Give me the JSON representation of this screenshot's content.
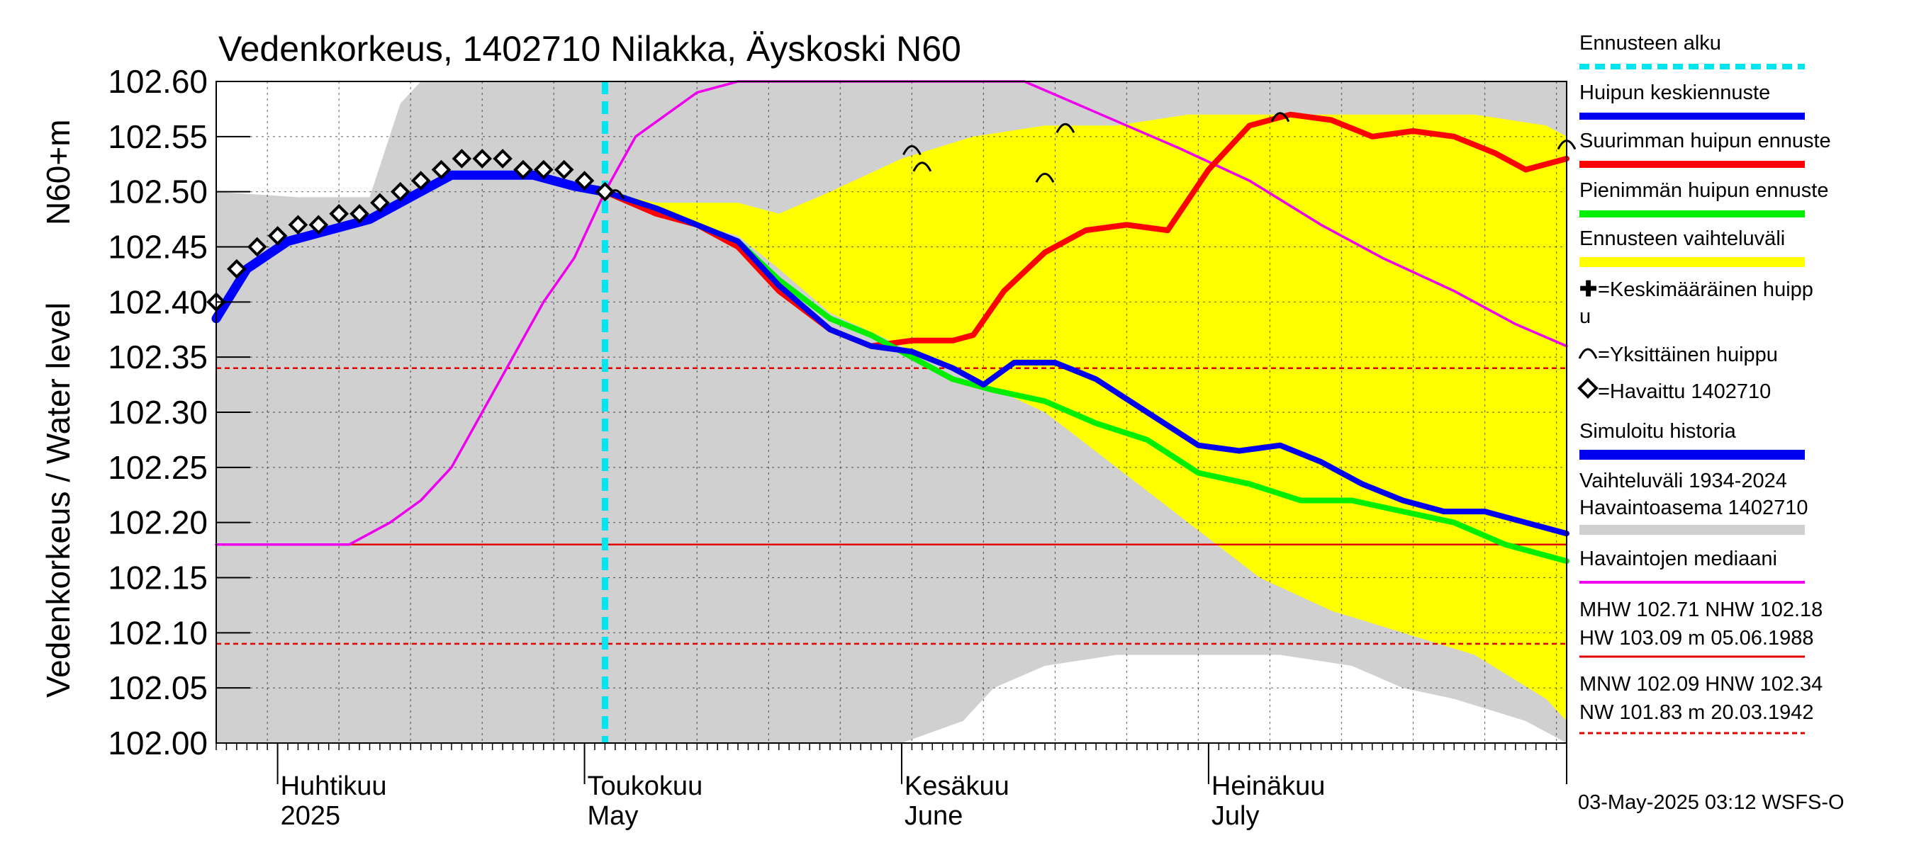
{
  "chart_data": {
    "type": "line",
    "title": "Vedenkorkeus, 1402710 Nilakka, Äyskoski N60",
    "ylabel_primary": "Vedenkorkeus / Water level",
    "ylabel_unit": "N60+m",
    "ylim": [
      102.0,
      102.6
    ],
    "xlim": [
      "2025-03-26",
      "2025-08-05"
    ],
    "y_ticks": [
      "102.00",
      "102.05",
      "102.10",
      "102.15",
      "102.20",
      "102.25",
      "102.30",
      "102.35",
      "102.40",
      "102.45",
      "102.50",
      "102.55",
      "102.60"
    ],
    "months": [
      {
        "fi": "Huhtikuu",
        "en": "2025",
        "date": "2025-04-01"
      },
      {
        "fi": "Toukokuu",
        "en": "May",
        "date": "2025-05-01"
      },
      {
        "fi": "Kesäkuu",
        "en": "June",
        "date": "2025-06-01"
      },
      {
        "fi": "Heinäkuu",
        "en": "July",
        "date": "2025-07-01"
      }
    ],
    "grid": true,
    "forecast_start": "2025-05-03",
    "reference_lines": [
      {
        "label": "NHW",
        "value": 102.18,
        "style": "solid",
        "color": "#e00000"
      },
      {
        "label": "HNW",
        "value": 102.34,
        "style": "dashed",
        "color": "#e00000"
      },
      {
        "label": "MNW",
        "value": 102.09,
        "style": "dashed",
        "color": "#e00000"
      }
    ],
    "series": [
      {
        "name": "Vaihteluväli 1934-2024 Havaintoasema 1402710",
        "kind": "band",
        "color": "#d0d0d0",
        "x": [
          "2025-03-26",
          "2025-04-03",
          "2025-04-10",
          "2025-04-13",
          "2025-04-15",
          "2025-04-20",
          "2025-05-10",
          "2025-05-20",
          "2025-05-28",
          "2025-06-01",
          "2025-06-07",
          "2025-06-10",
          "2025-06-15",
          "2025-06-22",
          "2025-07-01",
          "2025-07-08",
          "2025-07-15",
          "2025-07-20",
          "2025-07-25",
          "2025-08-01",
          "2025-08-05"
        ],
        "upper": [
          102.5,
          102.495,
          102.495,
          102.58,
          102.6,
          102.6,
          102.6,
          102.6,
          102.6,
          102.6,
          102.6,
          102.6,
          102.6,
          102.6,
          102.6,
          102.6,
          102.6,
          102.6,
          102.6,
          102.6,
          102.6
        ],
        "lower": [
          102.0,
          102.0,
          102.0,
          102.0,
          102.0,
          102.0,
          102.0,
          102.0,
          102.0,
          102.0,
          102.02,
          102.05,
          102.07,
          102.08,
          102.08,
          102.08,
          102.07,
          102.05,
          102.04,
          102.02,
          102.0
        ]
      },
      {
        "name": "Ennusteen vaihteluväli",
        "kind": "band",
        "color": "#ffff00",
        "x": [
          "2025-05-03",
          "2025-05-08",
          "2025-05-12",
          "2025-05-16",
          "2025-05-20",
          "2025-05-25",
          "2025-06-01",
          "2025-06-08",
          "2025-06-15",
          "2025-06-22",
          "2025-06-29",
          "2025-07-06",
          "2025-07-13",
          "2025-07-20",
          "2025-07-27",
          "2025-08-03",
          "2025-08-05"
        ],
        "upper": [
          102.5,
          102.49,
          102.49,
          102.49,
          102.48,
          102.5,
          102.53,
          102.55,
          102.56,
          102.56,
          102.57,
          102.57,
          102.57,
          102.57,
          102.57,
          102.56,
          102.55
        ],
        "lower": [
          102.5,
          102.48,
          102.47,
          102.46,
          102.43,
          102.39,
          102.36,
          102.33,
          102.3,
          102.25,
          102.2,
          102.15,
          102.12,
          102.1,
          102.08,
          102.04,
          102.02
        ]
      },
      {
        "name": "Havaintojen mediaani",
        "kind": "line",
        "color": "#ee00ee",
        "x": [
          "2025-03-26",
          "2025-04-08",
          "2025-04-12",
          "2025-04-15",
          "2025-04-18",
          "2025-04-21",
          "2025-04-24",
          "2025-04-27",
          "2025-04-30",
          "2025-05-03",
          "2025-05-06",
          "2025-05-09",
          "2025-05-12",
          "2025-05-16",
          "2025-06-13",
          "2025-06-18",
          "2025-06-23",
          "2025-06-28",
          "2025-07-05",
          "2025-07-12",
          "2025-07-18",
          "2025-07-25",
          "2025-07-31",
          "2025-08-05"
        ],
        "y": [
          102.18,
          102.18,
          102.2,
          102.22,
          102.25,
          102.3,
          102.35,
          102.4,
          102.44,
          102.5,
          102.55,
          102.57,
          102.59,
          102.6,
          102.6,
          102.58,
          102.56,
          102.54,
          102.51,
          102.47,
          102.44,
          102.41,
          102.38,
          102.36
        ]
      },
      {
        "name": "Havaittu 1402710",
        "kind": "markers",
        "color": "#000000",
        "x": [
          "2025-03-26",
          "2025-03-28",
          "2025-03-30",
          "2025-04-01",
          "2025-04-03",
          "2025-04-05",
          "2025-04-07",
          "2025-04-09",
          "2025-04-11",
          "2025-04-13",
          "2025-04-15",
          "2025-04-17",
          "2025-04-19",
          "2025-04-21",
          "2025-04-23",
          "2025-04-25",
          "2025-04-27",
          "2025-04-29",
          "2025-05-01",
          "2025-05-03"
        ],
        "y": [
          102.4,
          102.43,
          102.45,
          102.46,
          102.47,
          102.47,
          102.48,
          102.48,
          102.49,
          102.5,
          102.51,
          102.52,
          102.53,
          102.53,
          102.53,
          102.52,
          102.52,
          102.52,
          102.51,
          102.5
        ]
      },
      {
        "name": "Simuloitu historia",
        "kind": "line",
        "color": "#0000ff",
        "x": [
          "2025-03-26",
          "2025-03-29",
          "2025-04-02",
          "2025-04-06",
          "2025-04-10",
          "2025-04-14",
          "2025-04-18",
          "2025-04-22",
          "2025-04-26",
          "2025-04-30",
          "2025-05-03"
        ],
        "y": [
          102.385,
          102.43,
          102.455,
          102.465,
          102.475,
          102.495,
          102.515,
          102.515,
          102.515,
          102.505,
          102.5
        ]
      },
      {
        "name": "Suurimman huipun ennuste",
        "kind": "line",
        "color": "#ff0000",
        "x": [
          "2025-05-03",
          "2025-05-08",
          "2025-05-12",
          "2025-05-16",
          "2025-05-20",
          "2025-05-25",
          "2025-05-29",
          "2025-06-02",
          "2025-06-06",
          "2025-06-08",
          "2025-06-11",
          "2025-06-15",
          "2025-06-19",
          "2025-06-23",
          "2025-06-27",
          "2025-07-01",
          "2025-07-05",
          "2025-07-09",
          "2025-07-13",
          "2025-07-17",
          "2025-07-21",
          "2025-07-25",
          "2025-07-29",
          "2025-08-01",
          "2025-08-05"
        ],
        "y": [
          102.5,
          102.48,
          102.47,
          102.45,
          102.41,
          102.375,
          102.36,
          102.365,
          102.365,
          102.37,
          102.41,
          102.445,
          102.465,
          102.47,
          102.465,
          102.52,
          102.56,
          102.57,
          102.565,
          102.55,
          102.555,
          102.55,
          102.535,
          102.52,
          102.53
        ]
      },
      {
        "name": "Pienimmän huipun ennuste",
        "kind": "line",
        "color": "#00ee00",
        "x": [
          "2025-05-03",
          "2025-05-08",
          "2025-05-12",
          "2025-05-16",
          "2025-05-20",
          "2025-05-25",
          "2025-05-29",
          "2025-06-02",
          "2025-06-06",
          "2025-06-10",
          "2025-06-15",
          "2025-06-20",
          "2025-06-25",
          "2025-06-30",
          "2025-07-05",
          "2025-07-10",
          "2025-07-15",
          "2025-07-20",
          "2025-07-25",
          "2025-07-30",
          "2025-08-05"
        ],
        "y": [
          102.5,
          102.485,
          102.47,
          102.455,
          102.42,
          102.385,
          102.37,
          102.35,
          102.33,
          102.32,
          102.31,
          102.29,
          102.275,
          102.245,
          102.235,
          102.22,
          102.22,
          102.21,
          102.2,
          102.18,
          102.165
        ]
      },
      {
        "name": "Huipun keskiennuste",
        "kind": "line",
        "color": "#0000ee",
        "x": [
          "2025-05-03",
          "2025-05-08",
          "2025-05-12",
          "2025-05-16",
          "2025-05-20",
          "2025-05-25",
          "2025-05-29",
          "2025-06-02",
          "2025-06-06",
          "2025-06-09",
          "2025-06-12",
          "2025-06-16",
          "2025-06-20",
          "2025-06-25",
          "2025-06-30",
          "2025-07-04",
          "2025-07-08",
          "2025-07-12",
          "2025-07-16",
          "2025-07-20",
          "2025-07-24",
          "2025-07-28",
          "2025-08-01",
          "2025-08-05"
        ],
        "y": [
          102.5,
          102.485,
          102.47,
          102.455,
          102.415,
          102.375,
          102.36,
          102.355,
          102.34,
          102.325,
          102.345,
          102.345,
          102.33,
          102.3,
          102.27,
          102.265,
          102.27,
          102.255,
          102.235,
          102.22,
          102.21,
          102.21,
          102.2,
          102.19
        ]
      }
    ],
    "single_peaks": [
      {
        "x": "2025-05-04",
        "y": 102.5
      },
      {
        "x": "2025-06-02",
        "y": 102.54
      },
      {
        "x": "2025-06-03",
        "y": 102.525
      },
      {
        "x": "2025-06-15",
        "y": 102.515
      },
      {
        "x": "2025-06-17",
        "y": 102.56
      },
      {
        "x": "2025-07-08",
        "y": 102.57
      },
      {
        "x": "2025-08-05",
        "y": 102.545
      }
    ]
  },
  "legend": [
    {
      "key": "forecast_start",
      "label": "Ennusteen alku",
      "color": "#00e5ee",
      "style": "dashed"
    },
    {
      "key": "mean_peak",
      "label": "Huipun keskiennuste",
      "color": "#0000ee",
      "style": "line"
    },
    {
      "key": "max_peak",
      "label": "Suurimman huipun ennuste",
      "color": "#ff0000",
      "style": "line"
    },
    {
      "key": "min_peak",
      "label": "Pienimmän huipun ennuste",
      "color": "#00ee00",
      "style": "line"
    },
    {
      "key": "forecast_range",
      "label": "Ennusteen vaihteluväli",
      "color": "#ffff00",
      "style": "thick"
    },
    {
      "key": "mean_peak_marker",
      "label_line1": "=Keskimääräinen huipp",
      "label_line2": "u",
      "glyph": "✚"
    },
    {
      "key": "single_peak",
      "label": "=Yksittäinen huippu",
      "glyph": "arc"
    },
    {
      "key": "observed",
      "label": "=Havaittu 1402710",
      "glyph": "diamond"
    },
    {
      "key": "simulated",
      "label": "Simuloitu historia",
      "color": "#0000ee",
      "style": "thick"
    },
    {
      "key": "history_range",
      "label_line1": "Vaihteluväli 1934-2024",
      "label_line2": " Havaintoasema 1402710",
      "color": "#d0d0d0",
      "style": "thick"
    },
    {
      "key": "median",
      "label": "Havaintojen mediaani",
      "color": "#ee00ee",
      "style": "line"
    }
  ],
  "stats": {
    "high_line1": "MHW 102.71 NHW 102.18",
    "high_line2": "HW 103.09 m 05.06.1988",
    "low_line1": "MNW 102.09 HNW 102.34",
    "low_line2": "NW 101.83 m 20.03.1942"
  },
  "footer": "03-May-2025 03:12 WSFS-O"
}
